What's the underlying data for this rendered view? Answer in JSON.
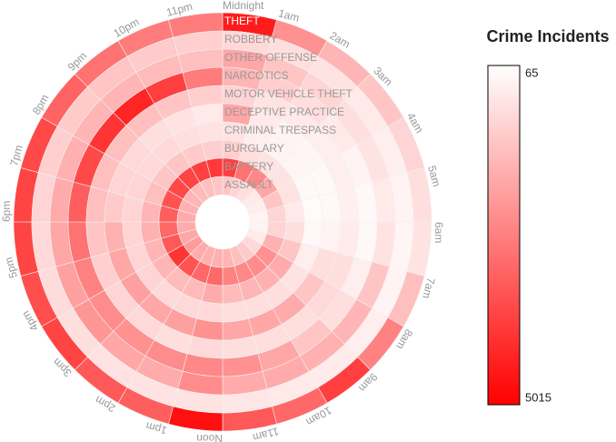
{
  "chart_data": {
    "type": "radial-heatmap",
    "title": "Crime Incidents",
    "categories": [
      "Midnight",
      "1am",
      "2am",
      "3am",
      "4am",
      "5am",
      "6am",
      "7am",
      "8am",
      "9am",
      "10am",
      "11am",
      "Noon",
      "1pm",
      "2pm",
      "3pm",
      "4pm",
      "5pm",
      "6pm",
      "7pm",
      "8pm",
      "9pm",
      "10pm",
      "11pm"
    ],
    "rings": [
      "THEFT",
      "ROBBERY",
      "OTHER OFFENSE",
      "NARCOTICS",
      "MOTOR VEHICLE THEFT",
      "DECEPTIVE PRACTICE",
      "CRIMINAL TRESPASS",
      "BURGLARY",
      "BATTERY",
      "ASSAULT"
    ],
    "values": [
      [
        4500,
        2200,
        1500,
        1200,
        900,
        700,
        600,
        1300,
        2500,
        3800,
        3000,
        3300,
        4700,
        3200,
        3300,
        3700,
        3500,
        3700,
        3700,
        3600,
        3100,
        2800,
        2600,
        2600
      ],
      [
        800,
        700,
        600,
        500,
        400,
        300,
        250,
        300,
        400,
        450,
        500,
        550,
        600,
        600,
        650,
        700,
        750,
        800,
        900,
        1000,
        1100,
        1200,
        1100,
        1000
      ],
      [
        1800,
        1200,
        900,
        700,
        600,
        500,
        600,
        1200,
        1500,
        1600,
        1700,
        1700,
        2300,
        1700,
        1800,
        2100,
        1900,
        1800,
        1700,
        1600,
        1500,
        1500,
        1400,
        1300
      ],
      [
        1500,
        1000,
        700,
        500,
        300,
        200,
        200,
        400,
        700,
        1200,
        1800,
        2200,
        2400,
        2300,
        2200,
        2300,
        2500,
        2800,
        3200,
        3600,
        4000,
        4300,
        3800,
        2600
      ],
      [
        900,
        600,
        500,
        400,
        400,
        350,
        450,
        700,
        800,
        700,
        700,
        700,
        800,
        700,
        800,
        900,
        1000,
        1200,
        1300,
        1300,
        1300,
        1300,
        1200,
        1000
      ],
      [
        1800,
        500,
        300,
        250,
        200,
        200,
        300,
        700,
        1200,
        1700,
        1800,
        1800,
        2200,
        1900,
        1800,
        1900,
        1800,
        1600,
        1100,
        900,
        800,
        700,
        600,
        500
      ],
      [
        600,
        400,
        300,
        250,
        200,
        150,
        200,
        400,
        600,
        700,
        700,
        700,
        800,
        800,
        800,
        900,
        900,
        900,
        900,
        900,
        800,
        800,
        700,
        600
      ],
      [
        1000,
        700,
        600,
        600,
        600,
        500,
        700,
        1200,
        1700,
        1600,
        1500,
        1400,
        1700,
        1400,
        1400,
        1500,
        1500,
        1600,
        1500,
        1300,
        1200,
        1200,
        1100,
        1000
      ],
      [
        3800,
        2800,
        2400,
        1800,
        1200,
        900,
        900,
        1600,
        2200,
        2300,
        2400,
        2500,
        3000,
        3000,
        3400,
        4000,
        3300,
        3000,
        3200,
        3400,
        3600,
        3700,
        3800,
        3900
      ],
      [
        1200,
        900,
        700,
        500,
        400,
        300,
        300,
        500,
        800,
        1100,
        1300,
        1500,
        1600,
        1600,
        1700,
        2000,
        1800,
        1700,
        1700,
        1600,
        1500,
        1400,
        1300,
        1200
      ]
    ],
    "colorbar": {
      "lim": [
        65,
        5015
      ],
      "ticks": [
        65,
        5015
      ],
      "colors": [
        "#ffffff",
        "#ff0000"
      ]
    }
  }
}
